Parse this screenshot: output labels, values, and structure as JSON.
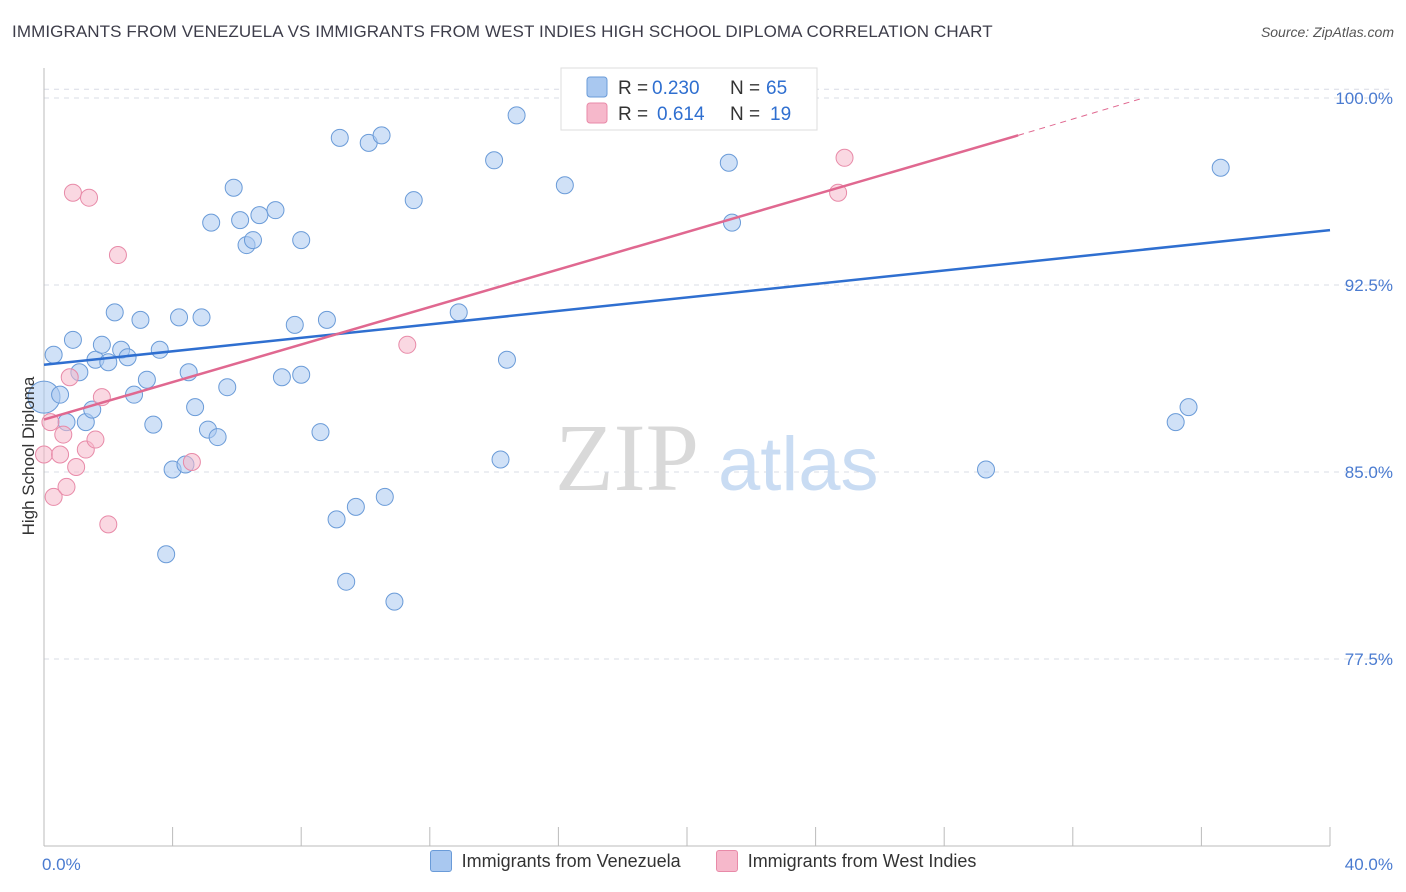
{
  "title": "IMMIGRANTS FROM VENEZUELA VS IMMIGRANTS FROM WEST INDIES HIGH SCHOOL DIPLOMA CORRELATION CHART",
  "source": "Source: ZipAtlas.com",
  "watermark": {
    "zip": "ZIP",
    "atlas": "atlas"
  },
  "colors": {
    "blue_fill": "#a9c8f0",
    "blue_stroke": "#6a9bd8",
    "blue_line": "#2f6fd0",
    "pink_fill": "#f6b8cb",
    "pink_stroke": "#e88aa8",
    "pink_line": "#e06890",
    "tick": "#4a7bd0",
    "grid": "#d8dce6"
  },
  "legend_top": {
    "blue": {
      "r_label": "R = ",
      "r_value": "0.230",
      "n_label": "N = ",
      "n_value": "65"
    },
    "pink": {
      "r_label": "R = ",
      "r_value": "0.614",
      "n_label": "N = ",
      "n_value": "19"
    }
  },
  "chart_data": {
    "type": "scatter",
    "title": "IMMIGRANTS FROM VENEZUELA VS IMMIGRANTS FROM WEST INDIES HIGH SCHOOL DIPLOMA CORRELATION CHART",
    "xlabel": "",
    "ylabel": "High School Diploma",
    "xlim": [
      0,
      40
    ],
    "ylim": [
      70,
      100.8
    ],
    "x_tick_labels": [
      "0.0%",
      "40.0%"
    ],
    "y_ticks": [
      77.5,
      85.0,
      92.5,
      100.0
    ],
    "y_tick_labels": [
      "77.5%",
      "85.0%",
      "92.5%",
      "100.0%"
    ],
    "grid": true,
    "legend_placement": "bottom",
    "series": [
      {
        "name": "Immigrants from Venezuela",
        "color": "#a9c8f0",
        "points": [
          [
            0.0,
            88.0
          ],
          [
            0.3,
            89.7
          ],
          [
            0.5,
            88.1
          ],
          [
            0.7,
            87.0
          ],
          [
            0.9,
            90.3
          ],
          [
            1.1,
            89.0
          ],
          [
            1.3,
            87.0
          ],
          [
            1.5,
            87.5
          ],
          [
            1.6,
            89.5
          ],
          [
            1.8,
            90.1
          ],
          [
            2.0,
            89.4
          ],
          [
            2.2,
            91.4
          ],
          [
            2.4,
            89.9
          ],
          [
            2.6,
            89.6
          ],
          [
            2.8,
            88.1
          ],
          [
            3.0,
            91.1
          ],
          [
            3.2,
            88.7
          ],
          [
            3.4,
            86.9
          ],
          [
            3.6,
            89.9
          ],
          [
            3.8,
            81.7
          ],
          [
            4.0,
            85.1
          ],
          [
            4.2,
            91.2
          ],
          [
            4.4,
            85.3
          ],
          [
            4.5,
            89.0
          ],
          [
            4.7,
            87.6
          ],
          [
            4.9,
            91.2
          ],
          [
            5.1,
            86.7
          ],
          [
            5.2,
            95.0
          ],
          [
            5.4,
            86.4
          ],
          [
            5.7,
            88.4
          ],
          [
            5.9,
            96.4
          ],
          [
            6.1,
            95.1
          ],
          [
            6.3,
            94.1
          ],
          [
            6.5,
            94.3
          ],
          [
            6.7,
            95.3
          ],
          [
            7.2,
            95.5
          ],
          [
            7.4,
            88.8
          ],
          [
            7.8,
            90.9
          ],
          [
            8.0,
            94.3
          ],
          [
            8.0,
            88.9
          ],
          [
            8.6,
            86.6
          ],
          [
            8.8,
            91.1
          ],
          [
            9.1,
            83.1
          ],
          [
            9.2,
            98.4
          ],
          [
            9.4,
            80.6
          ],
          [
            9.7,
            83.6
          ],
          [
            10.1,
            98.2
          ],
          [
            10.5,
            98.5
          ],
          [
            10.6,
            84.0
          ],
          [
            10.9,
            79.8
          ],
          [
            11.5,
            95.9
          ],
          [
            12.9,
            91.4
          ],
          [
            14.0,
            97.5
          ],
          [
            14.2,
            85.5
          ],
          [
            14.4,
            89.5
          ],
          [
            14.7,
            99.3
          ],
          [
            16.2,
            96.5
          ],
          [
            17.0,
            100.4
          ],
          [
            21.3,
            97.4
          ],
          [
            21.4,
            95.0
          ],
          [
            22.0,
            100.4
          ],
          [
            29.3,
            85.1
          ],
          [
            35.2,
            87.0
          ],
          [
            35.6,
            87.6
          ],
          [
            36.6,
            97.2
          ]
        ]
      },
      {
        "name": "Immigrants from West Indies",
        "color": "#f6b8cb",
        "points": [
          [
            0.0,
            85.7
          ],
          [
            0.2,
            87.0
          ],
          [
            0.3,
            84.0
          ],
          [
            0.5,
            85.7
          ],
          [
            0.6,
            86.5
          ],
          [
            0.7,
            84.4
          ],
          [
            0.8,
            88.8
          ],
          [
            0.9,
            96.2
          ],
          [
            1.0,
            85.2
          ],
          [
            1.3,
            85.9
          ],
          [
            1.4,
            96.0
          ],
          [
            1.6,
            86.3
          ],
          [
            1.8,
            88.0
          ],
          [
            2.0,
            82.9
          ],
          [
            2.3,
            93.7
          ],
          [
            4.6,
            85.4
          ],
          [
            11.3,
            90.1
          ],
          [
            24.7,
            96.2
          ],
          [
            24.9,
            97.6
          ]
        ]
      }
    ],
    "trendlines": [
      {
        "series": "Immigrants from Venezuela",
        "x": [
          0,
          40
        ],
        "y": [
          89.3,
          94.7
        ],
        "style": "solid"
      },
      {
        "series": "Immigrants from West Indies",
        "x": [
          0,
          30.3
        ],
        "y": [
          87.1,
          98.5
        ],
        "style": "solid"
      },
      {
        "series": "Immigrants from West Indies",
        "x": [
          30.3,
          34.2
        ],
        "y": [
          98.5,
          100.0
        ],
        "style": "dashed"
      }
    ]
  }
}
